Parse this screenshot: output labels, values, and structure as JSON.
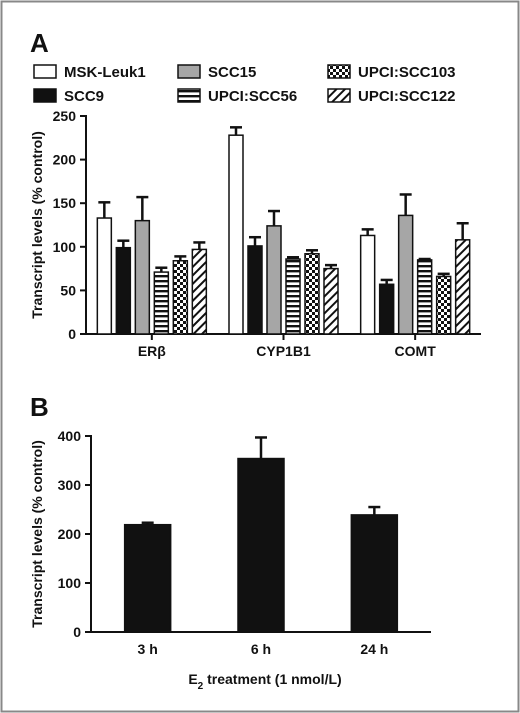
{
  "chart_data": [
    {
      "panel": "A",
      "type": "bar",
      "categories": [
        "ERβ",
        "CYP1B1",
        "COMT"
      ],
      "ylabel": "Transcript levels (% control)",
      "ylim": [
        0,
        250
      ],
      "yticks": [
        0,
        50,
        100,
        150,
        200,
        250
      ],
      "grid": false,
      "legend_position": "top",
      "series": [
        {
          "name": "MSK-Leuk1",
          "pattern": "white",
          "values": [
            133,
            228,
            113
          ],
          "errors": [
            18,
            9,
            7
          ]
        },
        {
          "name": "SCC9",
          "pattern": "black",
          "values": [
            99,
            101,
            57
          ],
          "errors": [
            8,
            10,
            5
          ]
        },
        {
          "name": "SCC15",
          "pattern": "gray",
          "values": [
            130,
            124,
            136
          ],
          "errors": [
            27,
            17,
            24
          ]
        },
        {
          "name": "UPCI:SCC56",
          "pattern": "horizontal-stripes",
          "values": [
            71,
            86,
            85
          ],
          "errors": [
            5,
            2,
            1
          ]
        },
        {
          "name": "UPCI:SCC103",
          "pattern": "checker",
          "values": [
            84,
            92,
            66
          ],
          "errors": [
            5,
            4,
            3
          ]
        },
        {
          "name": "UPCI:SCC122",
          "pattern": "diagonal-stripes",
          "values": [
            97,
            75,
            108
          ],
          "errors": [
            8,
            4,
            19
          ]
        }
      ]
    },
    {
      "panel": "B",
      "type": "bar",
      "categories": [
        "3 h",
        "6 h",
        "24 h"
      ],
      "xlabel_main": "E",
      "xlabel_sub": "2",
      "xlabel_rest": " treatment (1 nmol/L)",
      "ylabel": "Transcript levels (% control)",
      "ylim": [
        0,
        400
      ],
      "yticks": [
        0,
        100,
        200,
        300,
        400
      ],
      "grid": false,
      "series": [
        {
          "values": [
            219,
            354,
            239
          ],
          "errors": [
            4,
            43,
            16
          ],
          "color": "#111111"
        }
      ]
    }
  ]
}
